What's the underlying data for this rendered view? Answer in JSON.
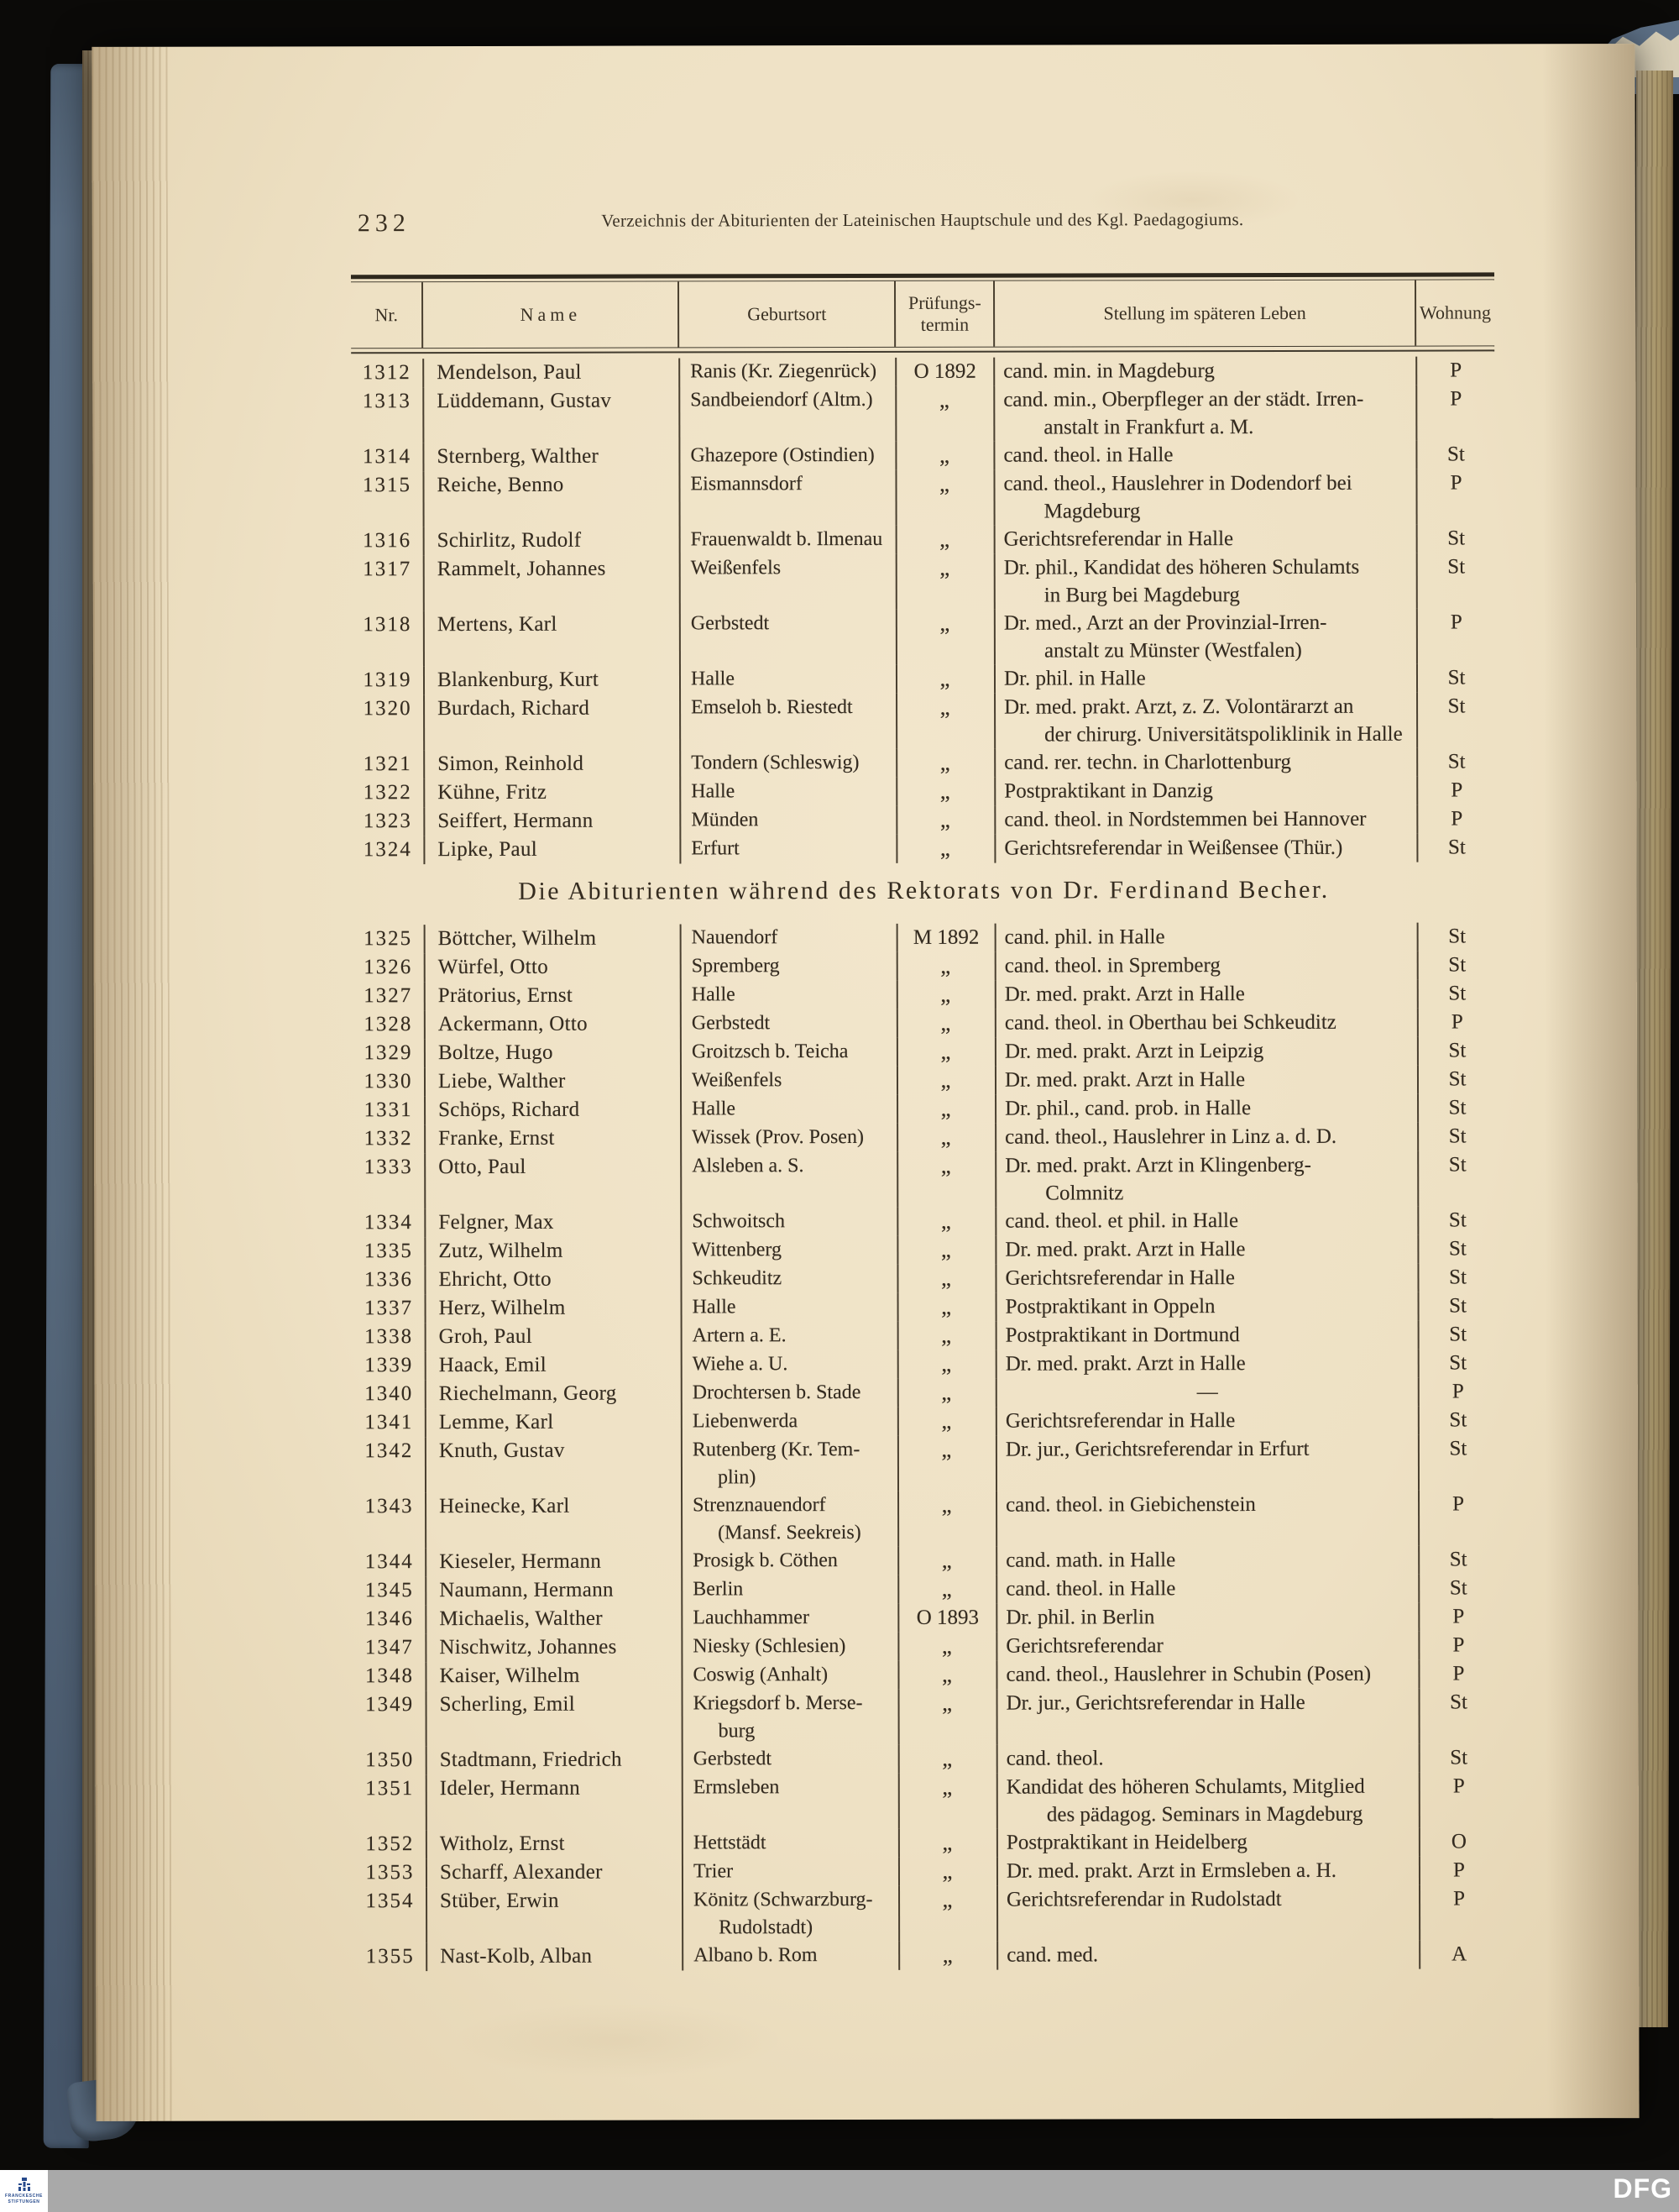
{
  "page": {
    "page_number": "232",
    "running_header": "Verzeichnis der Abiturienten der Lateinischen Hauptschule und des Kgl. Paedagogiums.",
    "section_heading": "Die Abiturienten während des Rektorats von Dr. Ferdinand Becher."
  },
  "table": {
    "headers": {
      "nr": "Nr.",
      "name": "Name",
      "geburtsort": "Geburtsort",
      "termin_line1": "Prüfungs-",
      "termin_line2": "termin",
      "stellung": "Stellung im späteren Leben",
      "wohnung": "Wohnung"
    },
    "blocks": [
      {
        "rows": [
          {
            "nr": "1312",
            "name": "Mendelson, Paul",
            "geburtsort": "Ranis (Kr. Ziegenrück)",
            "termin": "O 1892",
            "stellung": "cand. min. in Magdeburg",
            "wohnung": "P"
          },
          {
            "nr": "1313",
            "name": "Lüddemann, Gustav",
            "geburtsort": "Sandbeiendorf (Altm.)",
            "termin": "„",
            "stellung": "cand. min., Oberpfleger an der städt. Irren-\nanstalt in Frankfurt a. M.",
            "wohnung": "P"
          },
          {
            "nr": "1314",
            "name": "Sternberg, Walther",
            "geburtsort": "Ghazepore (Ostindien)",
            "termin": "„",
            "stellung": "cand. theol. in Halle",
            "wohnung": "St"
          },
          {
            "nr": "1315",
            "name": "Reiche, Benno",
            "geburtsort": "Eismannsdorf",
            "termin": "„",
            "stellung": "cand. theol., Hauslehrer in Dodendorf bei\nMagdeburg",
            "wohnung": "P"
          },
          {
            "nr": "1316",
            "name": "Schirlitz, Rudolf",
            "geburtsort": "Frauenwaldt b. Ilmenau",
            "termin": "„",
            "stellung": "Gerichtsreferendar in Halle",
            "wohnung": "St"
          },
          {
            "nr": "1317",
            "name": "Rammelt, Johannes",
            "geburtsort": "Weißenfels",
            "termin": "„",
            "stellung": "Dr. phil., Kandidat des höheren Schulamts\nin Burg bei Magdeburg",
            "wohnung": "St"
          },
          {
            "nr": "1318",
            "name": "Mertens, Karl",
            "geburtsort": "Gerbstedt",
            "termin": "„",
            "stellung": "Dr. med., Arzt an der Provinzial-Irren-\nanstalt zu Münster (Westfalen)",
            "wohnung": "P"
          },
          {
            "nr": "1319",
            "name": "Blankenburg, Kurt",
            "geburtsort": "Halle",
            "termin": "„",
            "stellung": "Dr. phil. in Halle",
            "wohnung": "St"
          },
          {
            "nr": "1320",
            "name": "Burdach, Richard",
            "geburtsort": "Emseloh b. Riestedt",
            "termin": "„",
            "stellung": "Dr. med. prakt. Arzt, z. Z. Volontärarzt an\nder chirurg. Universitätspoliklinik in Halle",
            "wohnung": "St"
          },
          {
            "nr": "1321",
            "name": "Simon, Reinhold",
            "geburtsort": "Tondern (Schleswig)",
            "termin": "„",
            "stellung": "cand. rer. techn. in Charlottenburg",
            "wohnung": "St"
          },
          {
            "nr": "1322",
            "name": "Kühne, Fritz",
            "geburtsort": "Halle",
            "termin": "„",
            "stellung": "Postpraktikant in Danzig",
            "wohnung": "P"
          },
          {
            "nr": "1323",
            "name": "Seiffert, Hermann",
            "geburtsort": "Münden",
            "termin": "„",
            "stellung": "cand. theol. in Nordstemmen bei Hannover",
            "wohnung": "P"
          },
          {
            "nr": "1324",
            "name": "Lipke, Paul",
            "geburtsort": "Erfurt",
            "termin": "„",
            "stellung": "Gerichtsreferendar in Weißensee (Thür.)",
            "wohnung": "St"
          }
        ]
      },
      {
        "rows": [
          {
            "nr": "1325",
            "name": "Böttcher, Wilhelm",
            "geburtsort": "Nauendorf",
            "termin": "M 1892",
            "stellung": "cand. phil. in Halle",
            "wohnung": "St"
          },
          {
            "nr": "1326",
            "name": "Würfel, Otto",
            "geburtsort": "Spremberg",
            "termin": "„",
            "stellung": "cand. theol. in Spremberg",
            "wohnung": "St"
          },
          {
            "nr": "1327",
            "name": "Prätorius, Ernst",
            "geburtsort": "Halle",
            "termin": "„",
            "stellung": "Dr. med. prakt. Arzt in Halle",
            "wohnung": "St"
          },
          {
            "nr": "1328",
            "name": "Ackermann, Otto",
            "geburtsort": "Gerbstedt",
            "termin": "„",
            "stellung": "cand. theol. in Oberthau bei Schkeuditz",
            "wohnung": "P"
          },
          {
            "nr": "1329",
            "name": "Boltze, Hugo",
            "geburtsort": "Groitzsch b. Teicha",
            "termin": "„",
            "stellung": "Dr. med. prakt. Arzt in Leipzig",
            "wohnung": "St"
          },
          {
            "nr": "1330",
            "name": "Liebe, Walther",
            "geburtsort": "Weißenfels",
            "termin": "„",
            "stellung": "Dr. med. prakt. Arzt in Halle",
            "wohnung": "St"
          },
          {
            "nr": "1331",
            "name": "Schöps, Richard",
            "geburtsort": "Halle",
            "termin": "„",
            "stellung": "Dr. phil., cand. prob. in Halle",
            "wohnung": "St"
          },
          {
            "nr": "1332",
            "name": "Franke, Ernst",
            "geburtsort": "Wissek (Prov. Posen)",
            "termin": "„",
            "stellung": "cand. theol., Hauslehrer in Linz a. d. D.",
            "wohnung": "St"
          },
          {
            "nr": "1333",
            "name": "Otto, Paul",
            "geburtsort": "Alsleben a. S.",
            "termin": "„",
            "stellung": "Dr. med. prakt. Arzt in Klingenberg-\nColmnitz",
            "wohnung": "St"
          },
          {
            "nr": "1334",
            "name": "Felgner, Max",
            "geburtsort": "Schwoitsch",
            "termin": "„",
            "stellung": "cand. theol. et phil. in Halle",
            "wohnung": "St"
          },
          {
            "nr": "1335",
            "name": "Zutz, Wilhelm",
            "geburtsort": "Wittenberg",
            "termin": "„",
            "stellung": "Dr. med. prakt. Arzt in Halle",
            "wohnung": "St"
          },
          {
            "nr": "1336",
            "name": "Ehricht, Otto",
            "geburtsort": "Schkeuditz",
            "termin": "„",
            "stellung": "Gerichtsreferendar in Halle",
            "wohnung": "St"
          },
          {
            "nr": "1337",
            "name": "Herz, Wilhelm",
            "geburtsort": "Halle",
            "termin": "„",
            "stellung": "Postpraktikant in Oppeln",
            "wohnung": "St"
          },
          {
            "nr": "1338",
            "name": "Groh, Paul",
            "geburtsort": "Artern a. E.",
            "termin": "„",
            "stellung": "Postpraktikant in Dortmund",
            "wohnung": "St"
          },
          {
            "nr": "1339",
            "name": "Haack, Emil",
            "geburtsort": "Wiehe a. U.",
            "termin": "„",
            "stellung": "Dr. med. prakt. Arzt in Halle",
            "wohnung": "St"
          },
          {
            "nr": "1340",
            "name": "Riechelmann, Georg",
            "geburtsort": "Drochtersen b. Stade",
            "termin": "„",
            "stellung": "—",
            "wohnung": "P"
          },
          {
            "nr": "1341",
            "name": "Lemme, Karl",
            "geburtsort": "Liebenwerda",
            "termin": "„",
            "stellung": "Gerichtsreferendar in Halle",
            "wohnung": "St"
          },
          {
            "nr": "1342",
            "name": "Knuth, Gustav",
            "geburtsort": "Rutenberg (Kr. Tem-\nplin)",
            "termin": "„",
            "stellung": "Dr. jur., Gerichtsreferendar in Erfurt",
            "wohnung": "St"
          },
          {
            "nr": "1343",
            "name": "Heinecke, Karl",
            "geburtsort": "Strenznauendorf\n(Mansf. Seekreis)",
            "termin": "„",
            "stellung": "cand. theol. in Giebichenstein",
            "wohnung": "P"
          },
          {
            "nr": "1344",
            "name": "Kieseler, Hermann",
            "geburtsort": "Prosigk b. Cöthen",
            "termin": "„",
            "stellung": "cand. math. in Halle",
            "wohnung": "St"
          },
          {
            "nr": "1345",
            "name": "Naumann, Hermann",
            "geburtsort": "Berlin",
            "termin": "„",
            "stellung": "cand. theol. in Halle",
            "wohnung": "St"
          },
          {
            "nr": "1346",
            "name": "Michaelis, Walther",
            "geburtsort": "Lauchhammer",
            "termin": "O 1893",
            "stellung": "Dr. phil. in Berlin",
            "wohnung": "P"
          },
          {
            "nr": "1347",
            "name": "Nischwitz, Johannes",
            "geburtsort": "Niesky (Schlesien)",
            "termin": "„",
            "stellung": "Gerichtsreferendar",
            "wohnung": "P"
          },
          {
            "nr": "1348",
            "name": "Kaiser, Wilhelm",
            "geburtsort": "Coswig (Anhalt)",
            "termin": "„",
            "stellung": "cand. theol., Hauslehrer in Schubin (Posen)",
            "wohnung": "P"
          },
          {
            "nr": "1349",
            "name": "Scherling, Emil",
            "geburtsort": "Kriegsdorf b. Merse-\nburg",
            "termin": "„",
            "stellung": "Dr. jur., Gerichtsreferendar in Halle",
            "wohnung": "St"
          },
          {
            "nr": "1350",
            "name": "Stadtmann, Friedrich",
            "geburtsort": "Gerbstedt",
            "termin": "„",
            "stellung": "cand. theol.",
            "wohnung": "St"
          },
          {
            "nr": "1351",
            "name": "Ideler, Hermann",
            "geburtsort": "Ermsleben",
            "termin": "„",
            "stellung": "Kandidat des höheren Schulamts, Mitglied\ndes pädagog. Seminars in Magdeburg",
            "wohnung": "P"
          },
          {
            "nr": "1352",
            "name": "Witholz, Ernst",
            "geburtsort": "Hettstädt",
            "termin": "„",
            "stellung": "Postpraktikant in Heidelberg",
            "wohnung": "O"
          },
          {
            "nr": "1353",
            "name": "Scharff, Alexander",
            "geburtsort": "Trier",
            "termin": "„",
            "stellung": "Dr. med. prakt. Arzt in Ermsleben a. H.",
            "wohnung": "P"
          },
          {
            "nr": "1354",
            "name": "Stüber, Erwin",
            "geburtsort": "Könitz (Schwarzburg-\nRudolstadt)",
            "termin": "„",
            "stellung": "Gerichtsreferendar in Rudolstadt",
            "wohnung": "P"
          },
          {
            "nr": "1355",
            "name": "Nast-Kolb, Alban",
            "geburtsort": "Albano b. Rom",
            "termin": "„",
            "stellung": "cand. med.",
            "wohnung": "A"
          }
        ]
      }
    ]
  },
  "footer": {
    "library_logo_line1": "FRANCKESCHE",
    "library_logo_line2": "STIFTUNGEN",
    "dfg_logo": "DFG"
  },
  "colors": {
    "ink": "#342b20",
    "line": "#4a4030",
    "page_bg": "#eee1c4",
    "cover_blue": "#5b6d81",
    "footer_gray": "#a9a9a9",
    "logo_blue": "#274a8c"
  }
}
